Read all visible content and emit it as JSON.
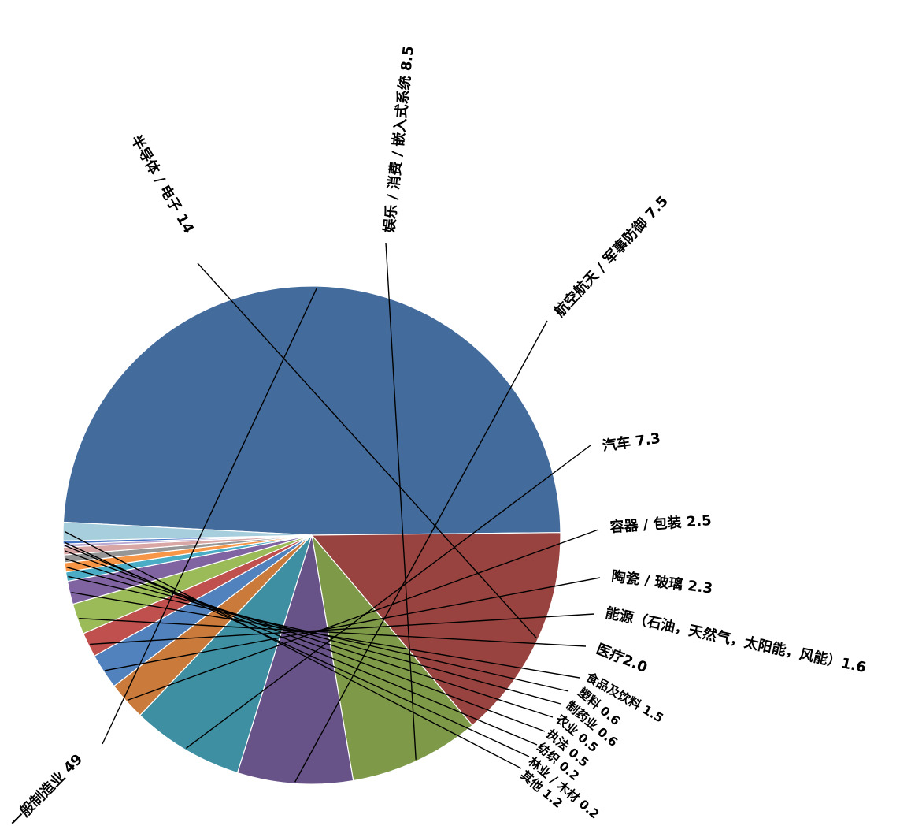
{
  "chart_data": {
    "type": "pie",
    "title": "",
    "slices": [
      {
        "label": "一般制造业",
        "value": 49,
        "text": "一般制造业 49",
        "color": "#436b9c"
      },
      {
        "label": "半导体 / 电子",
        "value": 14,
        "text": "半导体 / 电子 14",
        "color": "#98433f"
      },
      {
        "label": "娱乐 / 消费 / 嵌入式系统",
        "value": 8.5,
        "text": "娱乐 / 消费 / 嵌入式系统 8.5",
        "color": "#7e9a49"
      },
      {
        "label": "航空航天 / 军事防御",
        "value": 7.5,
        "text": "航空航天 / 军事防御 7.5",
        "color": "#685389"
      },
      {
        "label": "汽车",
        "value": 7.3,
        "text": "汽车 7.3",
        "color": "#3e8fa2"
      },
      {
        "label": "容器 / 包装",
        "value": 2.5,
        "text": "容器 / 包装 2.5",
        "color": "#ca7a3a"
      },
      {
        "label": "陶瓷 / 玻璃",
        "value": 2.3,
        "text": "陶瓷 / 玻璃 2.3",
        "color": "#5182be"
      },
      {
        "label": "能源（石油，天然气，太阳能，风能）",
        "value": 1.6,
        "text": "能源（石油，天然气，太阳能，风能）1.6",
        "color": "#bf504d"
      },
      {
        "label": "医疗",
        "value": 2.0,
        "text": "医疗2.0",
        "color": "#9bbb59"
      },
      {
        "label": "食品及饮料",
        "value": 1.5,
        "text": "食品及饮料 1.5",
        "color": "#8064a2"
      },
      {
        "label": "塑料",
        "value": 0.6,
        "text": "塑料 0.6",
        "color": "#4bacc6"
      },
      {
        "label": "制药业",
        "value": 0.6,
        "text": "制药业 0.6",
        "color": "#f79646"
      },
      {
        "label": "农业",
        "value": 0.5,
        "text": "农业 0.5",
        "color": "#969696"
      },
      {
        "label": "执法",
        "value": 0.5,
        "text": "执法 0.5",
        "color": "#d8a6a5"
      },
      {
        "label": "纺织",
        "value": 0.2,
        "text": "纺织 0.2",
        "color": "#b9a9d2"
      },
      {
        "label": "林业 / 木材",
        "value": 0.2,
        "text": "林业 / 木材 0.2",
        "color": "#4472c4"
      },
      {
        "label": "其他",
        "value": 1.2,
        "text": "其他 1.2",
        "color": "#a7cedc"
      }
    ],
    "start_angle_deg": -177,
    "direction": "clockwise",
    "legend": "none"
  }
}
